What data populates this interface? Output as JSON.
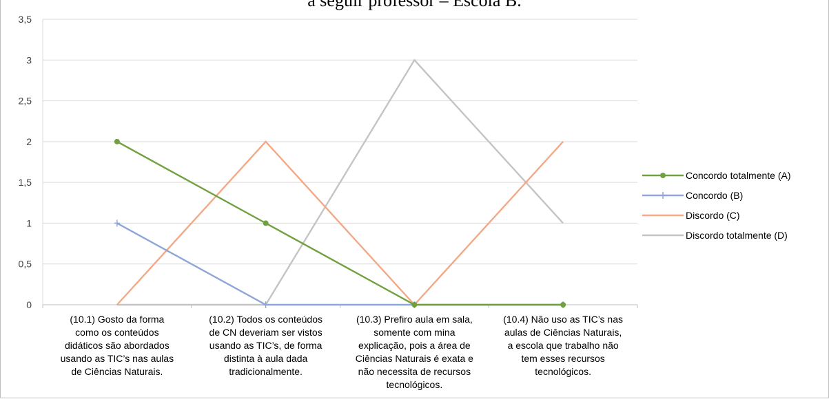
{
  "chart_data": {
    "type": "line",
    "title": "a seguir professor – Escola B.",
    "categories": [
      "(10.1) Gosto da forma como os conteúdos didáticos são abordados usando as TIC’s nas aulas de Ciências Naturais.",
      "(10.2) Todos os conteúdos de CN deveriam ser vistos usando as TIC’s, de forma distinta à aula dada tradicionalmente.",
      "(10.3) Prefiro aula em sala, somente com mina explicação, pois a área de Ciências Naturais é exata e não necessita de recursos tecnológicos.",
      "(10.4) Não uso as TIC’s nas aulas de Ciências Naturais, a escola que trabalho não tem esses recursos tecnológicos."
    ],
    "category_lines": [
      [
        "(10.1) Gosto da forma",
        "como os conteúdos",
        "didáticos são abordados",
        "usando as TIC’s nas aulas",
        "de Ciências Naturais."
      ],
      [
        "(10.2) Todos os conteúdos",
        "de CN deveriam ser vistos",
        "usando as TIC’s, de forma",
        "distinta à aula dada",
        "tradicionalmente."
      ],
      [
        "(10.3) Prefiro aula em sala,",
        "somente com mina",
        "explicação, pois a área de",
        "Ciências Naturais é exata e",
        "não necessita de recursos",
        "tecnológicos."
      ],
      [
        "(10.4) Não uso as TIC’s nas",
        "aulas de Ciências Naturais,",
        "a escola que trabalho não",
        "tem esses recursos",
        "tecnológicos."
      ]
    ],
    "series": [
      {
        "name": "Concordo totalmente (A)",
        "values": [
          2,
          1,
          0,
          0
        ],
        "color": "#70a03f",
        "marker": "circle"
      },
      {
        "name": "Concordo (B)",
        "values": [
          1,
          0,
          0,
          0
        ],
        "color": "#8ea6d8",
        "marker": "plus"
      },
      {
        "name": "Discordo (C)",
        "values": [
          0,
          2,
          0,
          2
        ],
        "color": "#f2a987",
        "marker": "none"
      },
      {
        "name": "Discordo totalmente (D)",
        "values": [
          0,
          0,
          3,
          1
        ],
        "color": "#c4c4c4",
        "marker": "none"
      }
    ],
    "ylim": [
      0,
      3.5
    ],
    "yticks": [
      "0",
      "0,5",
      "1",
      "1,5",
      "2",
      "2,5",
      "3",
      "3,5"
    ],
    "grid": true,
    "legend": "right"
  }
}
